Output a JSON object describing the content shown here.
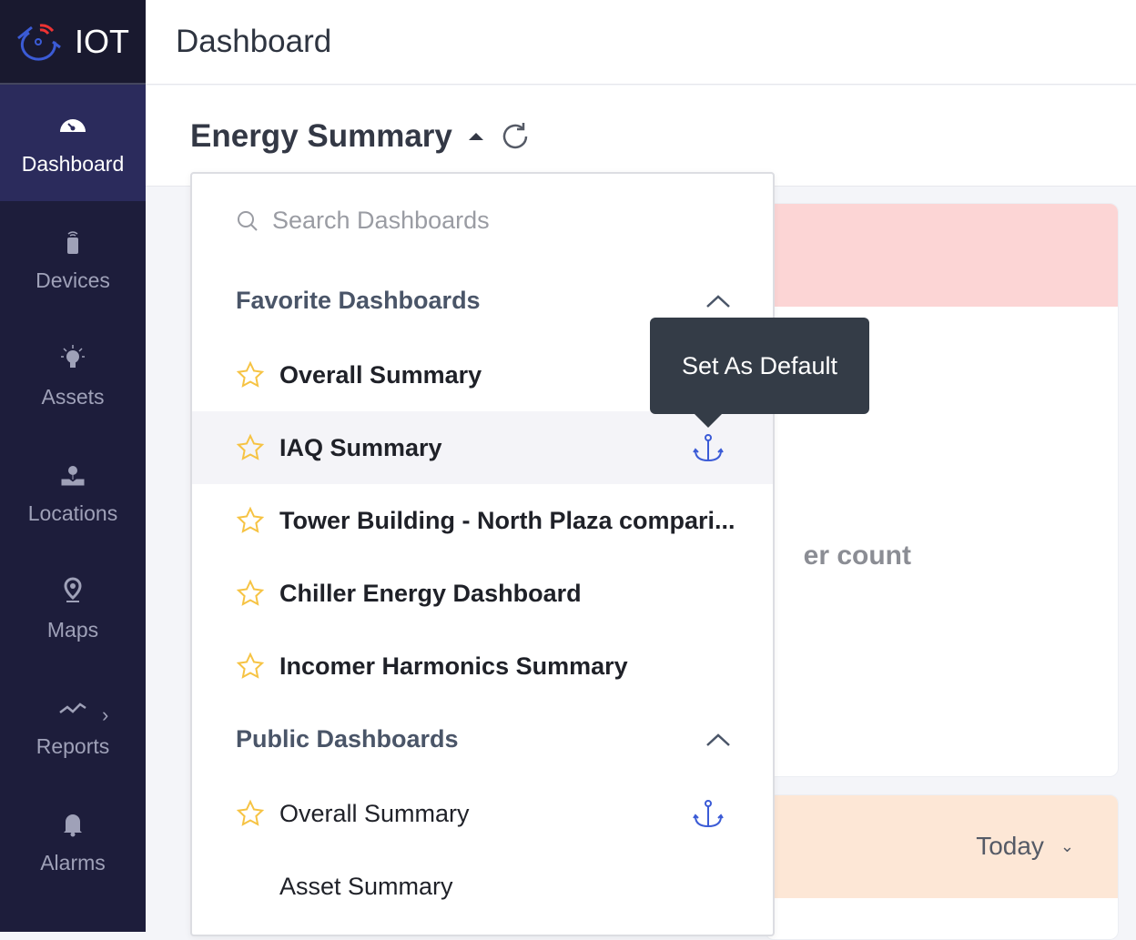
{
  "app": {
    "logo_text": "IOT"
  },
  "sidebar": {
    "items": [
      {
        "label": "Dashboard",
        "icon": "gauge-icon",
        "active": true
      },
      {
        "label": "Devices",
        "icon": "device-icon"
      },
      {
        "label": "Assets",
        "icon": "bulb-icon"
      },
      {
        "label": "Locations",
        "icon": "location-icon"
      },
      {
        "label": "Maps",
        "icon": "map-pin-icon"
      },
      {
        "label": "Reports",
        "icon": "trend-icon"
      },
      {
        "label": "Alarms",
        "icon": "bell-icon"
      }
    ]
  },
  "header": {
    "title": "Dashboard"
  },
  "dashboard": {
    "selected": "Energy Summary"
  },
  "dropdown": {
    "search_placeholder": "Search Dashboards",
    "favorites_title": "Favorite Dashboards",
    "favorites": [
      "Overall Summary",
      "IAQ Summary",
      "Tower Building - North Plaza compari...",
      "Chiller Energy Dashboard",
      "Incomer Harmonics Summary"
    ],
    "public_title": "Public Dashboards",
    "public": [
      "Overall Summary",
      "Asset Summary"
    ]
  },
  "tooltip": "Set As Default",
  "cards": {
    "partial_text": "er count",
    "period": "Today"
  },
  "colors": {
    "sidebar": "#1d1d3b",
    "active": "#2b2b5c",
    "star": "#f6c343",
    "anchor": "#3b5bd6",
    "tooltip": "#343c47"
  }
}
